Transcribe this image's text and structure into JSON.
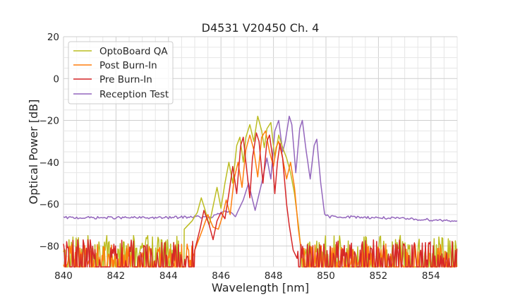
{
  "chart_data": {
    "type": "line",
    "title": "D4531 V20450 Ch. 4",
    "xlabel": "Wavelength [nm]",
    "ylabel": "Optical Power [dB]",
    "xlim": [
      840,
      855
    ],
    "ylim": [
      -90,
      20
    ],
    "xticks": [
      840,
      842,
      844,
      846,
      848,
      850,
      852,
      854
    ],
    "yticks": [
      20,
      0,
      -20,
      -40,
      -60,
      -80
    ],
    "ytick_labels": [
      "20",
      "0",
      "−20",
      "−40",
      "−60",
      "−80"
    ],
    "grid": true,
    "legend_position": "top-left",
    "series": [
      {
        "name": "OptoBoard QA",
        "color": "#bcbd22",
        "noise_floor": -82,
        "points": [
          [
            844.6,
            -72
          ],
          [
            844.9,
            -68
          ],
          [
            845.1,
            -64
          ],
          [
            845.25,
            -57
          ],
          [
            845.4,
            -63
          ],
          [
            845.55,
            -70
          ],
          [
            845.7,
            -61
          ],
          [
            845.85,
            -52
          ],
          [
            846.0,
            -62
          ],
          [
            846.15,
            -50
          ],
          [
            846.3,
            -40
          ],
          [
            846.45,
            -50
          ],
          [
            846.6,
            -32
          ],
          [
            846.72,
            -28
          ],
          [
            846.85,
            -40
          ],
          [
            846.95,
            -28
          ],
          [
            847.1,
            -22
          ],
          [
            847.25,
            -30
          ],
          [
            847.4,
            -18
          ],
          [
            847.55,
            -25
          ],
          [
            847.65,
            -33
          ],
          [
            847.75,
            -24
          ],
          [
            847.9,
            -21
          ],
          [
            848.05,
            -38
          ],
          [
            848.2,
            -27
          ],
          [
            848.35,
            -33
          ],
          [
            848.5,
            -38
          ],
          [
            848.65,
            -45
          ],
          [
            848.8,
            -55
          ],
          [
            848.95,
            -70
          ],
          [
            849.05,
            -82
          ]
        ]
      },
      {
        "name": "Post Burn-In",
        "color": "#ff7f0e",
        "noise_floor": -86,
        "points": [
          [
            845.0,
            -82
          ],
          [
            845.3,
            -72
          ],
          [
            845.5,
            -65
          ],
          [
            845.7,
            -71
          ],
          [
            845.9,
            -72
          ],
          [
            846.05,
            -66
          ],
          [
            846.2,
            -58
          ],
          [
            846.35,
            -65
          ],
          [
            846.5,
            -48
          ],
          [
            846.65,
            -40
          ],
          [
            846.8,
            -52
          ],
          [
            846.95,
            -34
          ],
          [
            847.1,
            -27
          ],
          [
            847.25,
            -34
          ],
          [
            847.4,
            -47
          ],
          [
            847.55,
            -28
          ],
          [
            847.7,
            -25
          ],
          [
            847.85,
            -35
          ],
          [
            848.0,
            -42
          ],
          [
            848.1,
            -33
          ],
          [
            848.2,
            -30
          ],
          [
            848.35,
            -38
          ],
          [
            848.5,
            -48
          ],
          [
            848.65,
            -40
          ],
          [
            848.8,
            -52
          ],
          [
            848.95,
            -72
          ],
          [
            849.1,
            -86
          ]
        ]
      },
      {
        "name": "Pre Burn-In",
        "color": "#d62728",
        "noise_floor": -84,
        "points": [
          [
            845.0,
            -82
          ],
          [
            845.2,
            -72
          ],
          [
            845.35,
            -63
          ],
          [
            845.55,
            -70
          ],
          [
            845.7,
            -77
          ],
          [
            845.85,
            -68
          ],
          [
            846.0,
            -64
          ],
          [
            846.15,
            -67
          ],
          [
            846.3,
            -55
          ],
          [
            846.45,
            -42
          ],
          [
            846.6,
            -55
          ],
          [
            846.75,
            -32
          ],
          [
            846.85,
            -28
          ],
          [
            846.95,
            -40
          ],
          [
            847.1,
            -57
          ],
          [
            847.2,
            -38
          ],
          [
            847.35,
            -26
          ],
          [
            847.45,
            -30
          ],
          [
            847.6,
            -50
          ],
          [
            847.75,
            -30
          ],
          [
            847.85,
            -27
          ],
          [
            847.95,
            -36
          ],
          [
            848.05,
            -55
          ],
          [
            848.15,
            -40
          ],
          [
            848.25,
            -31
          ],
          [
            848.35,
            -38
          ],
          [
            848.5,
            -60
          ],
          [
            848.6,
            -70
          ],
          [
            848.75,
            -82
          ],
          [
            848.9,
            -86
          ]
        ]
      },
      {
        "name": "Reception Test",
        "color": "#9467bd",
        "noise_floor": -67,
        "points": [
          [
            840.0,
            -66.5
          ],
          [
            844.0,
            -66.5
          ],
          [
            845.0,
            -66
          ],
          [
            845.6,
            -66.5
          ],
          [
            846.2,
            -63
          ],
          [
            846.55,
            -66
          ],
          [
            846.85,
            -58
          ],
          [
            847.05,
            -50
          ],
          [
            847.3,
            -63
          ],
          [
            847.55,
            -50
          ],
          [
            847.75,
            -38
          ],
          [
            847.9,
            -48
          ],
          [
            848.05,
            -25
          ],
          [
            848.2,
            -20
          ],
          [
            848.35,
            -35
          ],
          [
            848.45,
            -30
          ],
          [
            848.6,
            -18
          ],
          [
            848.7,
            -22
          ],
          [
            848.85,
            -45
          ],
          [
            849.0,
            -24
          ],
          [
            849.1,
            -20
          ],
          [
            849.25,
            -35
          ],
          [
            849.4,
            -48
          ],
          [
            849.55,
            -32
          ],
          [
            849.65,
            -29
          ],
          [
            849.8,
            -50
          ],
          [
            849.95,
            -65
          ],
          [
            850.1,
            -66
          ],
          [
            850.5,
            -66
          ],
          [
            852.0,
            -66.5
          ],
          [
            855.0,
            -68
          ]
        ]
      }
    ]
  }
}
